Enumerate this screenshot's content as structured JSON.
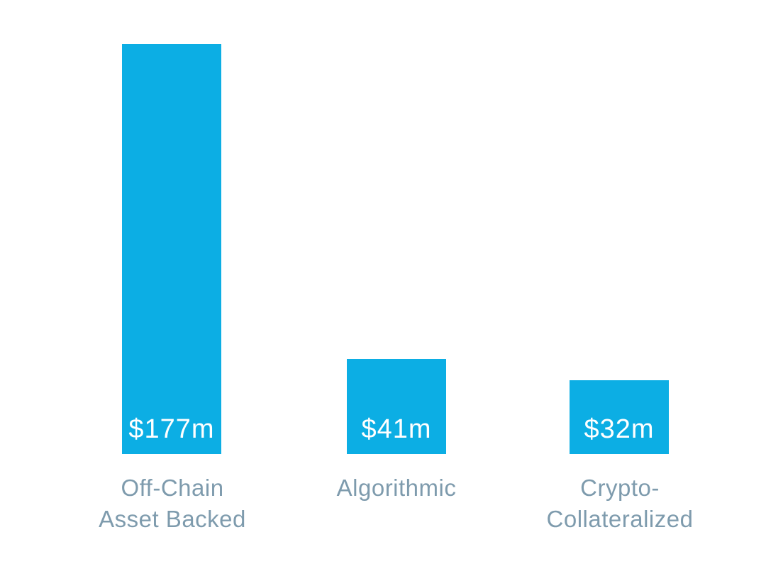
{
  "page": {
    "background": "#ffffff"
  },
  "chart_data": {
    "type": "bar",
    "title": "",
    "xlabel": "",
    "ylabel": "",
    "categories": [
      "Off-Chain Asset Backed",
      "Algorithmic",
      "Crypto-Collateralized"
    ],
    "category_lines": [
      [
        "Off-Chain",
        "Asset Backed"
      ],
      [
        "Algorithmic",
        ""
      ],
      [
        "Crypto-",
        "Collateralized"
      ]
    ],
    "values": [
      177,
      41,
      32
    ],
    "value_labels": [
      "$177m",
      "$41m",
      "$32m"
    ],
    "colors": {
      "bar": "#0caee4",
      "category_label": "#7e9bad",
      "value_label": "#ffffff"
    },
    "grid": false,
    "axes_visible": false,
    "legend": "none",
    "value_label_position": "inside-bottom"
  }
}
